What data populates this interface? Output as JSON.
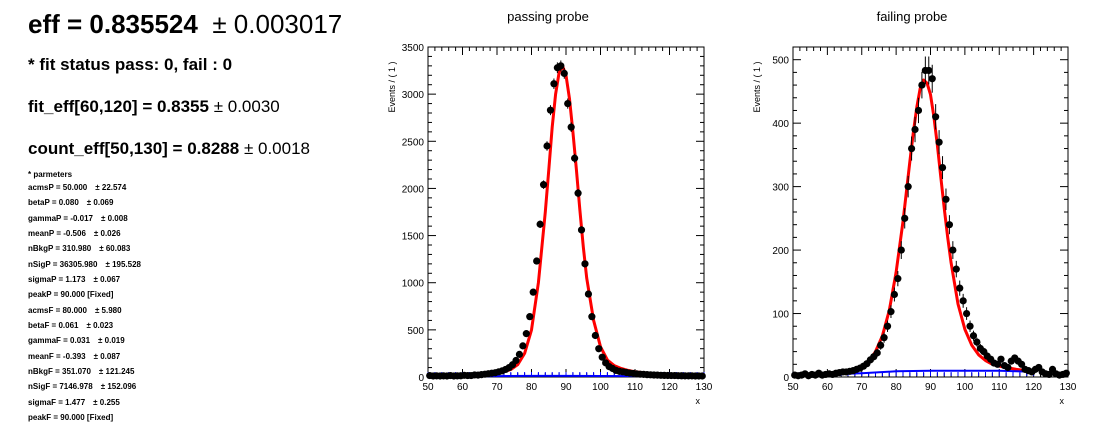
{
  "summary": {
    "eff": "eff = 0.835524",
    "eff_err": "± 0.003017",
    "fit_status": "* fit status pass: 0, fail : 0",
    "fit_eff": "fit_eff[60,120] = 0.8355",
    "fit_eff_err": "± 0.0030",
    "count_eff": "count_eff[50,130] = 0.8288",
    "count_eff_err": "± 0.0018"
  },
  "parameters": {
    "title": "* parmeters",
    "items": [
      {
        "text": "acmsP = 50.000",
        "err": "± 22.574"
      },
      {
        "text": "betaP = 0.080",
        "err": "± 0.069"
      },
      {
        "text": "gammaP = -0.017",
        "err": "± 0.008"
      },
      {
        "text": "meanP = -0.506",
        "err": "± 0.026"
      },
      {
        "text": "nBkgP = 310.980",
        "err": "± 60.083"
      },
      {
        "text": "nSigP = 36305.980",
        "err": "± 195.528"
      },
      {
        "text": "sigmaP = 1.173",
        "err": "± 0.067"
      },
      {
        "text": "peakP = 90.000 [Fixed]",
        "err": ""
      },
      {
        "text": "acmsF = 80.000",
        "err": "± 5.980"
      },
      {
        "text": "betaF = 0.061",
        "err": "± 0.023"
      },
      {
        "text": "gammaF = 0.031",
        "err": "± 0.019"
      },
      {
        "text": "meanF = -0.393",
        "err": "± 0.087"
      },
      {
        "text": "nBkgF = 351.070",
        "err": "± 121.245"
      },
      {
        "text": "nSigF = 7146.978",
        "err": "± 152.096"
      },
      {
        "text": "sigmaF = 1.477",
        "err": "± 0.255"
      },
      {
        "text": "peakF = 90.000 [Fixed]",
        "err": ""
      }
    ]
  },
  "colors": {
    "points": "#000000",
    "fit_total": "#ff0000",
    "fit_background": "#0000ff"
  },
  "chart_data": [
    {
      "type": "scatter",
      "title": "passing probe",
      "xlabel": "x",
      "ylabel": "Events / ( 1 )",
      "xlim": [
        50,
        130
      ],
      "ylim": [
        0,
        3500
      ],
      "xticks": [
        50,
        60,
        70,
        80,
        90,
        100,
        110,
        120,
        130
      ],
      "yticks": [
        0,
        500,
        1000,
        1500,
        2000,
        2500,
        3000,
        3500
      ],
      "grid": false,
      "legend": "none",
      "series": [
        {
          "kind": "points",
          "x": [
            50,
            51,
            52,
            53,
            54,
            55,
            56,
            57,
            58,
            59,
            60,
            61,
            62,
            63,
            64,
            65,
            66,
            67,
            68,
            69,
            70,
            71,
            72,
            73,
            74,
            75,
            76,
            77,
            78,
            79,
            80,
            81,
            82,
            83,
            84,
            85,
            86,
            87,
            88,
            89,
            90,
            91,
            92,
            93,
            94,
            95,
            96,
            97,
            98,
            99,
            100,
            101,
            102,
            103,
            104,
            105,
            106,
            107,
            108,
            109,
            110,
            111,
            112,
            113,
            114,
            115,
            116,
            117,
            118,
            119,
            120,
            121,
            122,
            123,
            124,
            125,
            126,
            127,
            128,
            129
          ],
          "y": [
            15,
            10,
            12,
            10,
            12,
            8,
            15,
            10,
            12,
            13,
            18,
            15,
            15,
            22,
            20,
            25,
            30,
            35,
            40,
            45,
            55,
            65,
            80,
            100,
            130,
            175,
            240,
            330,
            460,
            640,
            900,
            1230,
            1620,
            2040,
            2450,
            2830,
            3110,
            3280,
            3300,
            3220,
            2900,
            2650,
            2320,
            1950,
            1560,
            1200,
            880,
            640,
            440,
            300,
            210,
            150,
            110,
            90,
            70,
            60,
            55,
            48,
            42,
            38,
            33,
            30,
            28,
            25,
            23,
            21,
            20,
            18,
            17,
            16,
            15,
            15,
            14,
            13,
            12,
            12,
            12,
            11,
            11,
            10
          ],
          "yerr": [
            4,
            3,
            3,
            3,
            3,
            3,
            4,
            3,
            3,
            4,
            4,
            4,
            4,
            5,
            4,
            5,
            5,
            6,
            6,
            7,
            7,
            8,
            9,
            10,
            11,
            13,
            15,
            18,
            21,
            25,
            30,
            35,
            40,
            45,
            50,
            53,
            56,
            57,
            57,
            57,
            54,
            51,
            48,
            44,
            39,
            35,
            30,
            25,
            21,
            17,
            14,
            12,
            10,
            9,
            8,
            8,
            7,
            7,
            6,
            6,
            6,
            5,
            5,
            5,
            5,
            5,
            4,
            4,
            4,
            4,
            4,
            4,
            4,
            4,
            3,
            3,
            3,
            3,
            3,
            3
          ]
        },
        {
          "kind": "fit_total",
          "x": [
            50,
            55,
            60,
            65,
            68,
            70,
            72,
            74,
            76,
            78,
            80,
            82,
            84,
            85,
            86,
            87,
            88,
            89,
            90,
            91,
            92,
            93,
            94,
            95,
            96,
            98,
            100,
            102,
            104,
            106,
            108,
            110,
            115,
            120,
            125,
            130
          ],
          "y": [
            10,
            12,
            15,
            22,
            30,
            40,
            55,
            80,
            130,
            250,
            500,
            1000,
            1750,
            2200,
            2650,
            3000,
            3230,
            3300,
            3200,
            2950,
            2600,
            2200,
            1780,
            1380,
            1050,
            600,
            320,
            180,
            120,
            90,
            70,
            55,
            35,
            22,
            15,
            10
          ]
        },
        {
          "kind": "fit_background",
          "x": [
            50,
            60,
            70,
            80,
            90,
            100,
            110,
            120,
            130
          ],
          "y": [
            6,
            8,
            10,
            12,
            12,
            11,
            10,
            8,
            6
          ]
        }
      ]
    },
    {
      "type": "scatter",
      "title": "failing probe",
      "xlabel": "x",
      "ylabel": "Events / ( 1 )",
      "xlim": [
        50,
        130
      ],
      "ylim": [
        0,
        520
      ],
      "xticks": [
        50,
        60,
        70,
        80,
        90,
        100,
        110,
        120,
        130
      ],
      "yticks": [
        0,
        100,
        200,
        300,
        400,
        500
      ],
      "grid": false,
      "legend": "none",
      "series": [
        {
          "kind": "points",
          "x": [
            50,
            51,
            52,
            53,
            54,
            55,
            56,
            57,
            58,
            59,
            60,
            61,
            62,
            63,
            64,
            65,
            66,
            67,
            68,
            69,
            70,
            71,
            72,
            73,
            74,
            75,
            76,
            77,
            78,
            79,
            80,
            81,
            82,
            83,
            84,
            85,
            86,
            87,
            88,
            89,
            90,
            91,
            92,
            93,
            94,
            95,
            96,
            97,
            98,
            99,
            100,
            101,
            102,
            103,
            104,
            105,
            106,
            107,
            108,
            109,
            110,
            111,
            112,
            113,
            114,
            115,
            116,
            117,
            118,
            119,
            120,
            121,
            122,
            123,
            124,
            125,
            126,
            127,
            128,
            129
          ],
          "y": [
            3,
            2,
            3,
            5,
            2,
            4,
            3,
            6,
            3,
            4,
            5,
            4,
            6,
            7,
            8,
            8,
            9,
            10,
            12,
            14,
            17,
            21,
            27,
            32,
            38,
            50,
            62,
            80,
            103,
            130,
            155,
            200,
            250,
            300,
            360,
            390,
            420,
            460,
            483,
            483,
            470,
            410,
            370,
            330,
            280,
            240,
            200,
            170,
            140,
            120,
            100,
            80,
            65,
            55,
            45,
            40,
            33,
            28,
            22,
            20,
            28,
            18,
            15,
            25,
            30,
            25,
            20,
            12,
            10,
            8,
            12,
            15,
            8,
            5,
            4,
            12,
            5,
            3,
            4,
            6
          ],
          "yerr": [
            2,
            1,
            2,
            2,
            1,
            2,
            2,
            2,
            2,
            2,
            2,
            2,
            2,
            3,
            3,
            3,
            3,
            3,
            3,
            4,
            4,
            5,
            5,
            6,
            6,
            7,
            8,
            9,
            10,
            11,
            12,
            14,
            16,
            17,
            19,
            20,
            20,
            21,
            22,
            22,
            22,
            20,
            19,
            18,
            17,
            15,
            14,
            13,
            12,
            11,
            10,
            9,
            8,
            7,
            7,
            6,
            6,
            5,
            5,
            4,
            5,
            4,
            4,
            5,
            5,
            5,
            4,
            3,
            3,
            3,
            3,
            4,
            3,
            2,
            2,
            3,
            2,
            2,
            2,
            2
          ]
        },
        {
          "kind": "fit_total",
          "x": [
            50,
            55,
            60,
            65,
            68,
            70,
            72,
            74,
            76,
            78,
            80,
            82,
            84,
            85,
            86,
            87,
            88,
            89,
            90,
            91,
            92,
            93,
            94,
            95,
            96,
            98,
            100,
            102,
            104,
            106,
            108,
            110,
            112,
            115,
            118,
            120
          ],
          "y": [
            2,
            3,
            4,
            7,
            10,
            15,
            24,
            40,
            65,
            105,
            165,
            245,
            340,
            385,
            425,
            455,
            468,
            463,
            445,
            410,
            365,
            315,
            265,
            220,
            180,
            115,
            75,
            50,
            35,
            26,
            20,
            17,
            15,
            12,
            10,
            8
          ]
        },
        {
          "kind": "fit_background",
          "x": [
            50,
            60,
            70,
            80,
            90,
            100,
            110,
            115,
            120
          ],
          "y": [
            2,
            4,
            6,
            9,
            10,
            10,
            10,
            9,
            8
          ]
        }
      ]
    }
  ]
}
